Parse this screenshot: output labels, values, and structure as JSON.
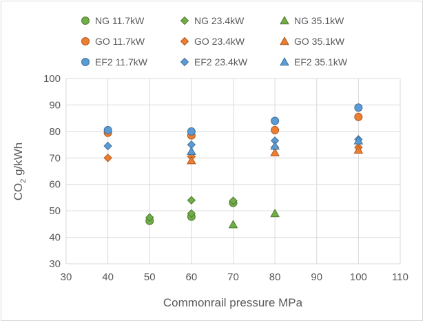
{
  "chart_data": {
    "type": "scatter",
    "title": "",
    "xlabel": "Commonrail pressure  MPa",
    "ylabel": {
      "main": "CO",
      "subscript": "2",
      "unit": "  g/kWh"
    },
    "xlim": [
      30,
      110
    ],
    "ylim": [
      30,
      100
    ],
    "xticks": [
      30,
      40,
      50,
      60,
      70,
      80,
      90,
      100,
      110
    ],
    "yticks": [
      30,
      40,
      50,
      60,
      70,
      80,
      90,
      100
    ],
    "grid": true,
    "legend_position": "top",
    "colors": {
      "NG": "#70ad47",
      "GO": "#ed7d31",
      "EF2": "#5b9bd5",
      "grid": "#d9d9d9",
      "text": "#595959"
    },
    "series": [
      {
        "name": "NG 11.7kW",
        "fuel": "NG",
        "marker": "circle",
        "points": [
          [
            50,
            46.2
          ],
          [
            60,
            47.8
          ],
          [
            70,
            53.0
          ]
        ]
      },
      {
        "name": "NG 23.4kW",
        "fuel": "NG",
        "marker": "diamond",
        "points": [
          [
            50,
            47.5
          ],
          [
            60,
            54.0
          ],
          [
            60,
            49.0
          ],
          [
            70,
            53.8
          ]
        ]
      },
      {
        "name": "NG 35.1kW",
        "fuel": "NG",
        "marker": "triangle",
        "points": [
          [
            70,
            44.8
          ],
          [
            80,
            49.0
          ]
        ]
      },
      {
        "name": "GO 11.7kW",
        "fuel": "GO",
        "marker": "circle",
        "points": [
          [
            40,
            79.5
          ],
          [
            60,
            78.5
          ],
          [
            80,
            80.5
          ],
          [
            100,
            85.5
          ]
        ]
      },
      {
        "name": "GO 23.4kW",
        "fuel": "GO",
        "marker": "diamond",
        "points": [
          [
            40,
            70.0
          ],
          [
            60,
            70.5
          ],
          [
            80,
            74.0
          ],
          [
            100,
            74.0
          ]
        ]
      },
      {
        "name": "GO 35.1kW",
        "fuel": "GO",
        "marker": "triangle",
        "points": [
          [
            60,
            69.0
          ],
          [
            80,
            72.0
          ],
          [
            100,
            73.0
          ]
        ]
      },
      {
        "name": "EF2 11.7kW",
        "fuel": "EF2",
        "marker": "circle",
        "points": [
          [
            40,
            80.5
          ],
          [
            60,
            80.0
          ],
          [
            80,
            84.0
          ],
          [
            100,
            89.0
          ]
        ]
      },
      {
        "name": "EF2 23.4kW",
        "fuel": "EF2",
        "marker": "diamond",
        "points": [
          [
            40,
            74.5
          ],
          [
            60,
            75.0
          ],
          [
            80,
            76.5
          ],
          [
            100,
            77.0
          ]
        ]
      },
      {
        "name": "EF2 35.1kW",
        "fuel": "EF2",
        "marker": "triangle",
        "points": [
          [
            60,
            72.5
          ],
          [
            80,
            74.5
          ],
          [
            100,
            76.5
          ]
        ]
      }
    ]
  }
}
